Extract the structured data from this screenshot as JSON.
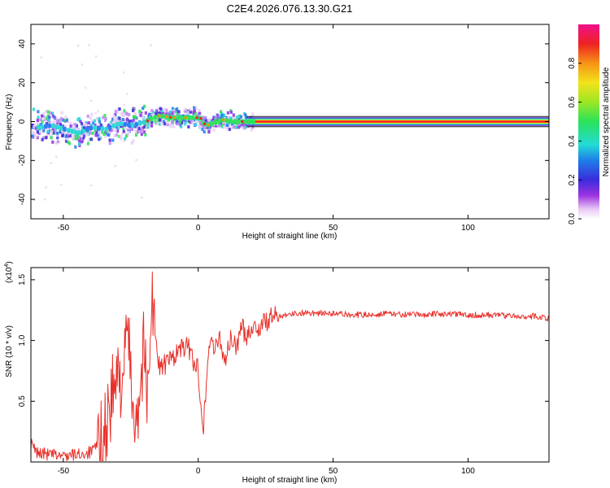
{
  "figure": {
    "title": "C2E4.2026.076.13.30.G21"
  },
  "chart_data": [
    {
      "type": "heatmap",
      "title": "C2E4.2026.076.13.30.G21",
      "xlabel": "Height of straight line (km)",
      "ylabel": "Frequency (Hz)",
      "xlim": [
        -62,
        130
      ],
      "ylim": [
        -50,
        50
      ],
      "x_ticks": [
        -50,
        0,
        50,
        100
      ],
      "x_tick_labels": [
        "-50",
        "0",
        "50",
        "100"
      ],
      "y_ticks": [
        -40,
        -20,
        0,
        20,
        40
      ],
      "y_tick_labels": [
        "-40",
        "-20",
        "0",
        "20",
        "40"
      ],
      "colorbar": {
        "label": "Normalized spectral amplitude",
        "range": [
          0,
          1
        ],
        "ticks": [
          0.0,
          0.2,
          0.4,
          0.6,
          0.8
        ],
        "tick_labels": [
          "0.0",
          "0.2",
          "0.4",
          "0.6",
          "0.8"
        ]
      },
      "ridge": {
        "x": [
          -60,
          -55,
          -50,
          -45,
          -40,
          -35,
          -30,
          -25,
          -20,
          -17,
          -15,
          -10,
          -5,
          0,
          2,
          5,
          8,
          12,
          20,
          130
        ],
        "y": [
          -3,
          -2,
          -4,
          -6,
          -3,
          -4,
          -1,
          -2,
          0,
          2,
          3,
          2,
          2,
          2,
          -2,
          -1,
          1,
          0,
          0,
          0
        ]
      },
      "steady_band": {
        "x_start": 18,
        "x_end": 130,
        "frequency": 0
      }
    },
    {
      "type": "line",
      "xlabel": "Height of straight line (km)",
      "ylabel": "SNR (10 * v/v)",
      "scale_label": "(x10",
      "scale_exponent": "4",
      "scale_suffix": ")",
      "xlim": [
        -62,
        130
      ],
      "ylim": [
        0,
        1.6
      ],
      "x_ticks": [
        -50,
        0,
        50,
        100
      ],
      "x_tick_labels": [
        "-50",
        "0",
        "50",
        "100"
      ],
      "y_ticks": [
        0.5,
        1.0,
        1.5
      ],
      "y_tick_labels": [
        "0.5",
        "1.0",
        "1.5"
      ],
      "color": "#e8302a",
      "series": [
        {
          "name": "SNR",
          "x": [
            -62,
            -60,
            -55,
            -50,
            -45,
            -40,
            -37,
            -35,
            -33,
            -31,
            -29,
            -27,
            -26,
            -25,
            -24,
            -23,
            -22,
            -21,
            -20,
            -19,
            -18,
            -17,
            -15,
            -12,
            -10,
            -8,
            -5,
            -3,
            -2,
            0,
            1,
            2,
            3,
            4,
            5,
            6,
            7,
            8,
            9,
            10,
            12,
            14,
            16,
            18,
            20,
            22,
            25,
            28,
            30,
            33,
            35,
            40,
            50,
            60,
            70,
            80,
            90,
            100,
            110,
            120,
            125,
            130
          ],
          "y": [
            0.15,
            0.08,
            0.06,
            0.05,
            0.06,
            0.08,
            0.12,
            0.2,
            0.45,
            0.6,
            0.7,
            0.8,
            1.2,
            0.6,
            0.5,
            0.45,
            0.5,
            0.75,
            1.0,
            0.4,
            1.1,
            1.35,
            0.8,
            0.8,
            0.85,
            0.9,
            0.95,
            0.92,
            0.85,
            0.75,
            0.5,
            0.3,
            0.65,
            0.95,
            1.05,
            0.9,
            0.95,
            1.05,
            0.9,
            0.85,
            1.0,
            0.95,
            1.1,
            1.05,
            1.12,
            1.1,
            1.15,
            1.2,
            1.2,
            1.22,
            1.22,
            1.23,
            1.22,
            1.21,
            1.22,
            1.21,
            1.22,
            1.21,
            1.21,
            1.2,
            1.2,
            1.18
          ]
        }
      ]
    }
  ]
}
